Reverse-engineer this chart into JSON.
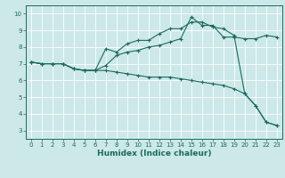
{
  "xlabel": "Humidex (Indice chaleur)",
  "bg_color": "#cce8e8",
  "grid_color": "#ffffff",
  "line_color": "#1a6b5a",
  "xlim": [
    -0.5,
    23.5
  ],
  "ylim": [
    2.5,
    10.5
  ],
  "xticks": [
    0,
    1,
    2,
    3,
    4,
    5,
    6,
    7,
    8,
    9,
    10,
    11,
    12,
    13,
    14,
    15,
    16,
    17,
    18,
    19,
    20,
    21,
    22,
    23
  ],
  "yticks": [
    3,
    4,
    5,
    6,
    7,
    8,
    9,
    10
  ],
  "line1_x": [
    0,
    1,
    2,
    3,
    4,
    5,
    6,
    7,
    8,
    9,
    10,
    11,
    12,
    13,
    14,
    15,
    16,
    17,
    18,
    19,
    20,
    21,
    22,
    23
  ],
  "line1_y": [
    7.1,
    7.0,
    7.0,
    7.0,
    6.7,
    6.6,
    6.6,
    7.9,
    7.7,
    8.2,
    8.4,
    8.4,
    8.8,
    9.1,
    9.1,
    9.5,
    9.5,
    9.2,
    9.1,
    8.7,
    5.2,
    4.5,
    3.5,
    3.3
  ],
  "line2_x": [
    0,
    1,
    2,
    3,
    4,
    5,
    6,
    7,
    8,
    9,
    10,
    11,
    12,
    13,
    14,
    15,
    16,
    17,
    18,
    19,
    20,
    21,
    22,
    23
  ],
  "line2_y": [
    7.1,
    7.0,
    7.0,
    7.0,
    6.7,
    6.6,
    6.6,
    6.9,
    7.5,
    7.7,
    7.8,
    8.0,
    8.1,
    8.3,
    8.5,
    9.8,
    9.3,
    9.3,
    8.6,
    8.6,
    8.5,
    8.5,
    8.7,
    8.6
  ],
  "line3_x": [
    0,
    1,
    2,
    3,
    4,
    5,
    6,
    7,
    8,
    9,
    10,
    11,
    12,
    13,
    14,
    15,
    16,
    17,
    18,
    19,
    20,
    21,
    22,
    23
  ],
  "line3_y": [
    7.1,
    7.0,
    7.0,
    7.0,
    6.7,
    6.6,
    6.6,
    6.6,
    6.5,
    6.4,
    6.3,
    6.2,
    6.2,
    6.2,
    6.1,
    6.0,
    5.9,
    5.8,
    5.7,
    5.5,
    5.2,
    4.5,
    3.5,
    3.3
  ],
  "tick_fontsize": 5.0,
  "xlabel_fontsize": 6.5
}
